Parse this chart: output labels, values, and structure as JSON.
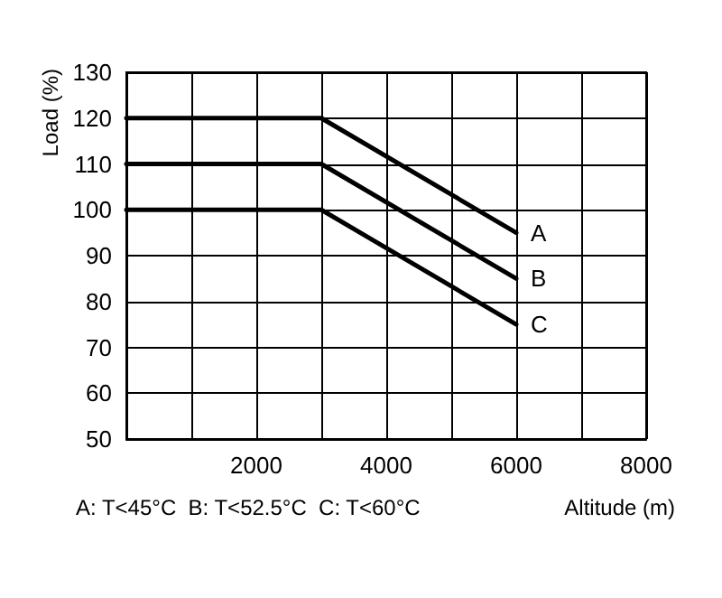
{
  "chart_data": {
    "type": "line",
    "xlabel": "Altitude (m)",
    "ylabel": "Load (%)",
    "annotations": [
      "A: T<45°C  B: T<52.5°C  C: T<60°C"
    ],
    "x": [
      0,
      3000,
      6000
    ],
    "series": [
      {
        "name": "A",
        "color": "#000000",
        "values": [
          120,
          120,
          95
        ]
      },
      {
        "name": "B",
        "color": "#000000",
        "values": [
          110,
          110,
          85
        ]
      },
      {
        "name": "C",
        "color": "#000000",
        "values": [
          100,
          100,
          75
        ]
      }
    ],
    "xlim": [
      0,
      8000
    ],
    "xticks": [
      {
        "value": 0,
        "label": null
      },
      {
        "value": 1000,
        "label": null
      },
      2000,
      {
        "value": 3000,
        "label": null
      },
      4000,
      {
        "value": 5000,
        "label": null
      },
      6000,
      {
        "value": 7000,
        "label": null
      },
      8000
    ],
    "ylim": [
      50,
      130
    ],
    "yticks": [
      50,
      60,
      70,
      80,
      90,
      100,
      110,
      120,
      130
    ],
    "grid": true,
    "legend": false,
    "marker": "none",
    "line_style": "solid"
  }
}
